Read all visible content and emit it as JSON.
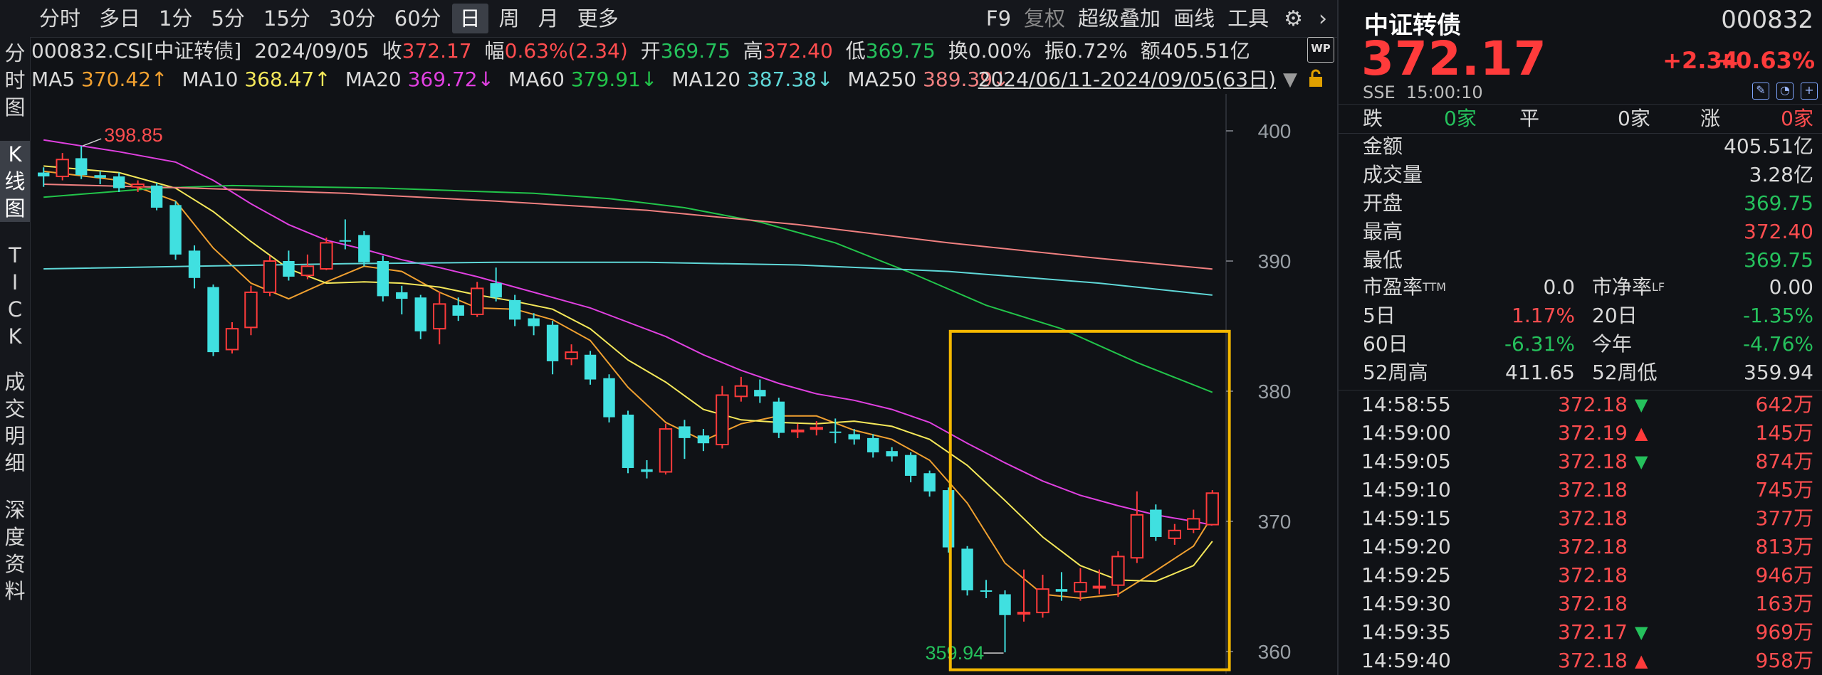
{
  "toolbar": {
    "periods": [
      "分时",
      "多日",
      "1分",
      "5分",
      "15分",
      "30分",
      "60分",
      "日",
      "周",
      "月",
      "更多"
    ],
    "active_period": "日",
    "tools": [
      "F9",
      "复权",
      "超级叠加",
      "画线",
      "工具"
    ],
    "icons": [
      "gear-icon",
      "chevron-right-icon"
    ]
  },
  "left_tabs": [
    "分时图",
    "K线图",
    "TICK",
    "成交明细",
    "深度资料"
  ],
  "active_tab": "K线图",
  "info": {
    "code": "000832.CSI[中证转债]",
    "date": "2024/09/05",
    "close_label": "收",
    "close": "372.17",
    "amp_label": "幅",
    "amp": "0.63%(2.34)",
    "open_label": "开",
    "open": "369.75",
    "high_label": "高",
    "high": "372.40",
    "low_label": "低",
    "low": "369.75",
    "turnover_label": "换",
    "turnover": "0.00%",
    "swing_label": "振",
    "swing": "0.72%",
    "amount_label": "额",
    "amount": "405.51亿",
    "wp_badge": "WP"
  },
  "ma_row": {
    "items": [
      {
        "label": "MA5",
        "value": "370.42",
        "arrow": "↑",
        "color": "#f0a030"
      },
      {
        "label": "MA10",
        "value": "368.47",
        "arrow": "↑",
        "color": "#f5e85a"
      },
      {
        "label": "MA20",
        "value": "369.72",
        "arrow": "↓",
        "color": "#e040e0"
      },
      {
        "label": "MA60",
        "value": "379.91",
        "arrow": "↓",
        "color": "#22c44a"
      },
      {
        "label": "MA120",
        "value": "387.38",
        "arrow": "↓",
        "color": "#5fd7d7"
      },
      {
        "label": "MA250",
        "value": "389.39",
        "arrow": "↓",
        "color": "#f08080"
      }
    ],
    "range": "2024/06/11-2024/09/05(63日)",
    "range_dropdown": "▼"
  },
  "chart_data": {
    "type": "candlestick",
    "ylim": [
      359,
      402
    ],
    "y_ticks": [
      400,
      390,
      380,
      370,
      360
    ],
    "bar_count": 63,
    "annotations": {
      "high_label": "398.85",
      "high_index": 2,
      "low_label": "359.94",
      "low_index": 51
    },
    "colors": {
      "up": "#ff3b3b",
      "down": "#40e0e0",
      "highlight": "#f5b800",
      "grid": "#3a3d44"
    },
    "highlight_box": {
      "from_index": 49,
      "to_index": 62
    },
    "candles": [
      {
        "o": 396.8,
        "c": 396.5,
        "h": 397.2,
        "l": 395.7
      },
      {
        "o": 396.5,
        "c": 397.8,
        "h": 398.3,
        "l": 396.2
      },
      {
        "o": 397.9,
        "c": 396.6,
        "h": 398.85,
        "l": 396.3
      },
      {
        "o": 396.6,
        "c": 396.4,
        "h": 396.9,
        "l": 395.9
      },
      {
        "o": 396.5,
        "c": 395.6,
        "h": 396.8,
        "l": 395.3
      },
      {
        "o": 395.7,
        "c": 395.9,
        "h": 396.2,
        "l": 395.3
      },
      {
        "o": 395.8,
        "c": 394.1,
        "h": 396.0,
        "l": 393.9
      },
      {
        "o": 394.3,
        "c": 390.5,
        "h": 394.6,
        "l": 390.1
      },
      {
        "o": 390.8,
        "c": 388.7,
        "h": 391.2,
        "l": 387.9
      },
      {
        "o": 388.0,
        "c": 383.0,
        "h": 388.2,
        "l": 382.7
      },
      {
        "o": 383.2,
        "c": 384.8,
        "h": 385.3,
        "l": 382.9
      },
      {
        "o": 384.9,
        "c": 387.6,
        "h": 388.1,
        "l": 384.3
      },
      {
        "o": 387.6,
        "c": 390.0,
        "h": 390.4,
        "l": 387.3
      },
      {
        "o": 390.0,
        "c": 388.8,
        "h": 390.8,
        "l": 388.5
      },
      {
        "o": 388.9,
        "c": 389.6,
        "h": 390.5,
        "l": 388.6
      },
      {
        "o": 389.4,
        "c": 391.4,
        "h": 391.8,
        "l": 389.3
      },
      {
        "o": 391.6,
        "c": 391.5,
        "h": 393.2,
        "l": 390.9
      },
      {
        "o": 392.0,
        "c": 389.9,
        "h": 392.3,
        "l": 389.6
      },
      {
        "o": 390.0,
        "c": 387.3,
        "h": 390.4,
        "l": 386.9
      },
      {
        "o": 387.6,
        "c": 387.1,
        "h": 388.1,
        "l": 385.9
      },
      {
        "o": 387.2,
        "c": 384.6,
        "h": 387.4,
        "l": 384.0
      },
      {
        "o": 384.8,
        "c": 386.7,
        "h": 387.6,
        "l": 383.6
      },
      {
        "o": 386.6,
        "c": 385.8,
        "h": 387.2,
        "l": 385.4
      },
      {
        "o": 385.9,
        "c": 387.9,
        "h": 388.4,
        "l": 385.7
      },
      {
        "o": 388.3,
        "c": 387.2,
        "h": 389.5,
        "l": 386.9
      },
      {
        "o": 387.0,
        "c": 385.5,
        "h": 387.4,
        "l": 385.0
      },
      {
        "o": 385.6,
        "c": 385.0,
        "h": 386.0,
        "l": 384.3
      },
      {
        "o": 385.1,
        "c": 382.3,
        "h": 385.4,
        "l": 381.3
      },
      {
        "o": 382.5,
        "c": 383.0,
        "h": 383.6,
        "l": 382.0
      },
      {
        "o": 382.8,
        "c": 380.9,
        "h": 383.1,
        "l": 380.5
      },
      {
        "o": 381.0,
        "c": 378.0,
        "h": 381.3,
        "l": 377.6
      },
      {
        "o": 378.2,
        "c": 374.1,
        "h": 378.5,
        "l": 373.7
      },
      {
        "o": 374.0,
        "c": 373.8,
        "h": 374.7,
        "l": 373.3
      },
      {
        "o": 373.8,
        "c": 377.1,
        "h": 377.5,
        "l": 373.6
      },
      {
        "o": 377.3,
        "c": 376.4,
        "h": 377.8,
        "l": 374.8
      },
      {
        "o": 376.6,
        "c": 376.0,
        "h": 377.1,
        "l": 375.4
      },
      {
        "o": 375.9,
        "c": 379.7,
        "h": 380.4,
        "l": 375.6
      },
      {
        "o": 379.6,
        "c": 380.4,
        "h": 381.1,
        "l": 379.2
      },
      {
        "o": 380.1,
        "c": 379.6,
        "h": 380.9,
        "l": 379.1
      },
      {
        "o": 379.2,
        "c": 376.8,
        "h": 379.5,
        "l": 376.4
      },
      {
        "o": 376.9,
        "c": 377.0,
        "h": 377.5,
        "l": 376.4
      },
      {
        "o": 377.1,
        "c": 377.2,
        "h": 377.7,
        "l": 376.6
      },
      {
        "o": 376.9,
        "c": 376.8,
        "h": 377.9,
        "l": 376.0
      },
      {
        "o": 376.7,
        "c": 376.3,
        "h": 377.1,
        "l": 375.9
      },
      {
        "o": 376.4,
        "c": 375.3,
        "h": 376.7,
        "l": 374.9
      },
      {
        "o": 375.4,
        "c": 375.0,
        "h": 375.7,
        "l": 374.6
      },
      {
        "o": 375.1,
        "c": 373.5,
        "h": 375.3,
        "l": 373.0
      },
      {
        "o": 373.7,
        "c": 372.3,
        "h": 373.9,
        "l": 371.9
      },
      {
        "o": 372.4,
        "c": 368.0,
        "h": 372.6,
        "l": 367.6
      },
      {
        "o": 367.9,
        "c": 364.7,
        "h": 368.1,
        "l": 364.3
      },
      {
        "o": 364.7,
        "c": 364.6,
        "h": 365.5,
        "l": 364.1
      },
      {
        "o": 364.4,
        "c": 362.8,
        "h": 364.7,
        "l": 359.94
      },
      {
        "o": 362.9,
        "c": 363.0,
        "h": 366.3,
        "l": 362.3
      },
      {
        "o": 363.0,
        "c": 364.8,
        "h": 365.9,
        "l": 362.6
      },
      {
        "o": 364.8,
        "c": 364.6,
        "h": 366.1,
        "l": 363.9
      },
      {
        "o": 364.6,
        "c": 365.3,
        "h": 366.4,
        "l": 363.9
      },
      {
        "o": 364.9,
        "c": 365.0,
        "h": 366.3,
        "l": 364.4
      },
      {
        "o": 365.1,
        "c": 367.3,
        "h": 367.7,
        "l": 364.2
      },
      {
        "o": 367.2,
        "c": 370.5,
        "h": 372.3,
        "l": 366.8
      },
      {
        "o": 370.9,
        "c": 368.8,
        "h": 371.3,
        "l": 368.5
      },
      {
        "o": 368.7,
        "c": 369.3,
        "h": 369.8,
        "l": 368.2
      },
      {
        "o": 369.4,
        "c": 370.2,
        "h": 370.9,
        "l": 369.1
      },
      {
        "o": 369.75,
        "c": 372.17,
        "h": 372.4,
        "l": 369.75
      }
    ],
    "ma_series": [
      {
        "name": "MA5",
        "color": "#f0a030",
        "points": [
          [
            0,
            396.9
          ],
          [
            4,
            396.2
          ],
          [
            7,
            394.6
          ],
          [
            9,
            391.0
          ],
          [
            11,
            388.3
          ],
          [
            13,
            387.1
          ],
          [
            15,
            388.4
          ],
          [
            17,
            389.6
          ],
          [
            19,
            389.2
          ],
          [
            21,
            387.6
          ],
          [
            23,
            386.4
          ],
          [
            25,
            386.3
          ],
          [
            27,
            385.5
          ],
          [
            29,
            383.9
          ],
          [
            31,
            380.3
          ],
          [
            33,
            377.6
          ],
          [
            35,
            376.2
          ],
          [
            37,
            377.5
          ],
          [
            39,
            378.1
          ],
          [
            41,
            378.1
          ],
          [
            43,
            377.0
          ],
          [
            45,
            376.3
          ],
          [
            47,
            374.7
          ],
          [
            49,
            371.4
          ],
          [
            51,
            366.8
          ],
          [
            53,
            364.4
          ],
          [
            55,
            364.1
          ],
          [
            57,
            364.4
          ],
          [
            59,
            366.2
          ],
          [
            61,
            368.1
          ],
          [
            62,
            370.42
          ]
        ]
      },
      {
        "name": "MA10",
        "color": "#f5e85a",
        "points": [
          [
            0,
            397.3
          ],
          [
            4,
            396.8
          ],
          [
            7,
            395.6
          ],
          [
            9,
            393.8
          ],
          [
            11,
            391.5
          ],
          [
            13,
            389.4
          ],
          [
            15,
            388.3
          ],
          [
            17,
            388.4
          ],
          [
            19,
            388.3
          ],
          [
            21,
            388.0
          ],
          [
            23,
            387.4
          ],
          [
            25,
            386.9
          ],
          [
            27,
            386.3
          ],
          [
            29,
            384.8
          ],
          [
            31,
            382.4
          ],
          [
            33,
            380.7
          ],
          [
            35,
            378.6
          ],
          [
            37,
            377.8
          ],
          [
            39,
            377.6
          ],
          [
            41,
            377.5
          ],
          [
            43,
            377.7
          ],
          [
            45,
            377.3
          ],
          [
            47,
            376.3
          ],
          [
            49,
            374.3
          ],
          [
            51,
            371.6
          ],
          [
            53,
            368.8
          ],
          [
            55,
            366.6
          ],
          [
            57,
            365.5
          ],
          [
            59,
            365.4
          ],
          [
            61,
            366.6
          ],
          [
            62,
            368.47
          ]
        ]
      },
      {
        "name": "MA20",
        "color": "#e040e0",
        "points": [
          [
            0,
            399.3
          ],
          [
            4,
            398.4
          ],
          [
            7,
            397.6
          ],
          [
            9,
            396.2
          ],
          [
            11,
            394.4
          ],
          [
            13,
            392.8
          ],
          [
            15,
            391.6
          ],
          [
            17,
            390.9
          ],
          [
            19,
            390.1
          ],
          [
            21,
            389.5
          ],
          [
            23,
            388.8
          ],
          [
            25,
            388.0
          ],
          [
            27,
            387.2
          ],
          [
            29,
            386.4
          ],
          [
            31,
            385.3
          ],
          [
            33,
            384.2
          ],
          [
            35,
            382.8
          ],
          [
            37,
            381.6
          ],
          [
            39,
            380.6
          ],
          [
            41,
            379.8
          ],
          [
            43,
            379.3
          ],
          [
            45,
            378.6
          ],
          [
            47,
            377.6
          ],
          [
            49,
            376.0
          ],
          [
            51,
            374.5
          ],
          [
            53,
            373.1
          ],
          [
            55,
            372.0
          ],
          [
            57,
            371.2
          ],
          [
            59,
            370.5
          ],
          [
            61,
            370.0
          ],
          [
            62,
            369.72
          ]
        ]
      },
      {
        "name": "MA60",
        "color": "#22c44a",
        "points": [
          [
            0,
            394.9
          ],
          [
            6,
            395.6
          ],
          [
            10,
            395.8
          ],
          [
            14,
            395.7
          ],
          [
            18,
            395.6
          ],
          [
            22,
            395.4
          ],
          [
            26,
            395.2
          ],
          [
            30,
            394.8
          ],
          [
            34,
            394.1
          ],
          [
            38,
            393.0
          ],
          [
            42,
            391.4
          ],
          [
            46,
            389.1
          ],
          [
            50,
            386.6
          ],
          [
            54,
            384.8
          ],
          [
            58,
            382.2
          ],
          [
            62,
            379.91
          ]
        ]
      },
      {
        "name": "MA120",
        "color": "#5fd7d7",
        "points": [
          [
            0,
            389.4
          ],
          [
            8,
            389.6
          ],
          [
            16,
            389.8
          ],
          [
            24,
            389.9
          ],
          [
            32,
            389.9
          ],
          [
            40,
            389.7
          ],
          [
            48,
            389.2
          ],
          [
            56,
            388.3
          ],
          [
            62,
            387.38
          ]
        ]
      },
      {
        "name": "MA250",
        "color": "#f08080",
        "points": [
          [
            0,
            395.9
          ],
          [
            8,
            395.6
          ],
          [
            16,
            395.2
          ],
          [
            24,
            394.6
          ],
          [
            32,
            393.9
          ],
          [
            40,
            392.8
          ],
          [
            48,
            391.4
          ],
          [
            56,
            390.2
          ],
          [
            62,
            389.39
          ]
        ]
      }
    ]
  },
  "panel": {
    "name": "中证转债",
    "code": "000832",
    "price": "372.17",
    "change": "+2.34",
    "change_pct": "+0.63%",
    "exchange": "SSE",
    "time": "15:00:10",
    "advance": {
      "down_label": "跌",
      "down": "0家",
      "flat_label": "平",
      "flat": "0家",
      "up_label": "涨",
      "up": "0家"
    },
    "stats": [
      {
        "label": "金额",
        "value": "405.51亿",
        "color": "#d9d9d9"
      },
      {
        "label": "成交量",
        "value": "3.28亿",
        "color": "#d9d9d9"
      },
      {
        "label": "开盘",
        "value": "369.75",
        "color": "#25c15c"
      },
      {
        "label": "最高",
        "value": "372.40",
        "color": "#ff4d4f"
      },
      {
        "label": "最低",
        "value": "369.75",
        "color": "#25c15c"
      }
    ],
    "pe_label": "市盈率",
    "pe_sup": "TTM",
    "pe": "0.0",
    "pb_label": "市净率",
    "pb_sup": "LF",
    "pb": "0.00",
    "perf": [
      {
        "l1": "5日",
        "v1": "1.17%",
        "c1": "#ff4d4f",
        "l2": "20日",
        "v2": "-1.35%",
        "c2": "#25c15c"
      },
      {
        "l1": "60日",
        "v1": "-6.31%",
        "c1": "#25c15c",
        "l2": "今年",
        "v2": "-4.76%",
        "c2": "#25c15c"
      },
      {
        "l1": "52周高",
        "v1": "411.65",
        "c1": "#d9d9d9",
        "l2": "52周低",
        "v2": "359.94",
        "c2": "#d9d9d9"
      }
    ],
    "ticks": [
      {
        "time": "14:58:55",
        "price": "372.18",
        "dir": "down",
        "vol": "642万"
      },
      {
        "time": "14:59:00",
        "price": "372.19",
        "dir": "up",
        "vol": "145万"
      },
      {
        "time": "14:59:05",
        "price": "372.18",
        "dir": "down",
        "vol": "874万"
      },
      {
        "time": "14:59:10",
        "price": "372.18",
        "dir": "",
        "vol": "745万"
      },
      {
        "time": "14:59:15",
        "price": "372.18",
        "dir": "",
        "vol": "377万"
      },
      {
        "time": "14:59:20",
        "price": "372.18",
        "dir": "",
        "vol": "813万"
      },
      {
        "time": "14:59:25",
        "price": "372.18",
        "dir": "",
        "vol": "946万"
      },
      {
        "time": "14:59:30",
        "price": "372.18",
        "dir": "",
        "vol": "163万"
      },
      {
        "time": "14:59:35",
        "price": "372.17",
        "dir": "down",
        "vol": "969万"
      },
      {
        "time": "14:59:40",
        "price": "372.18",
        "dir": "up",
        "vol": "958万"
      }
    ]
  }
}
